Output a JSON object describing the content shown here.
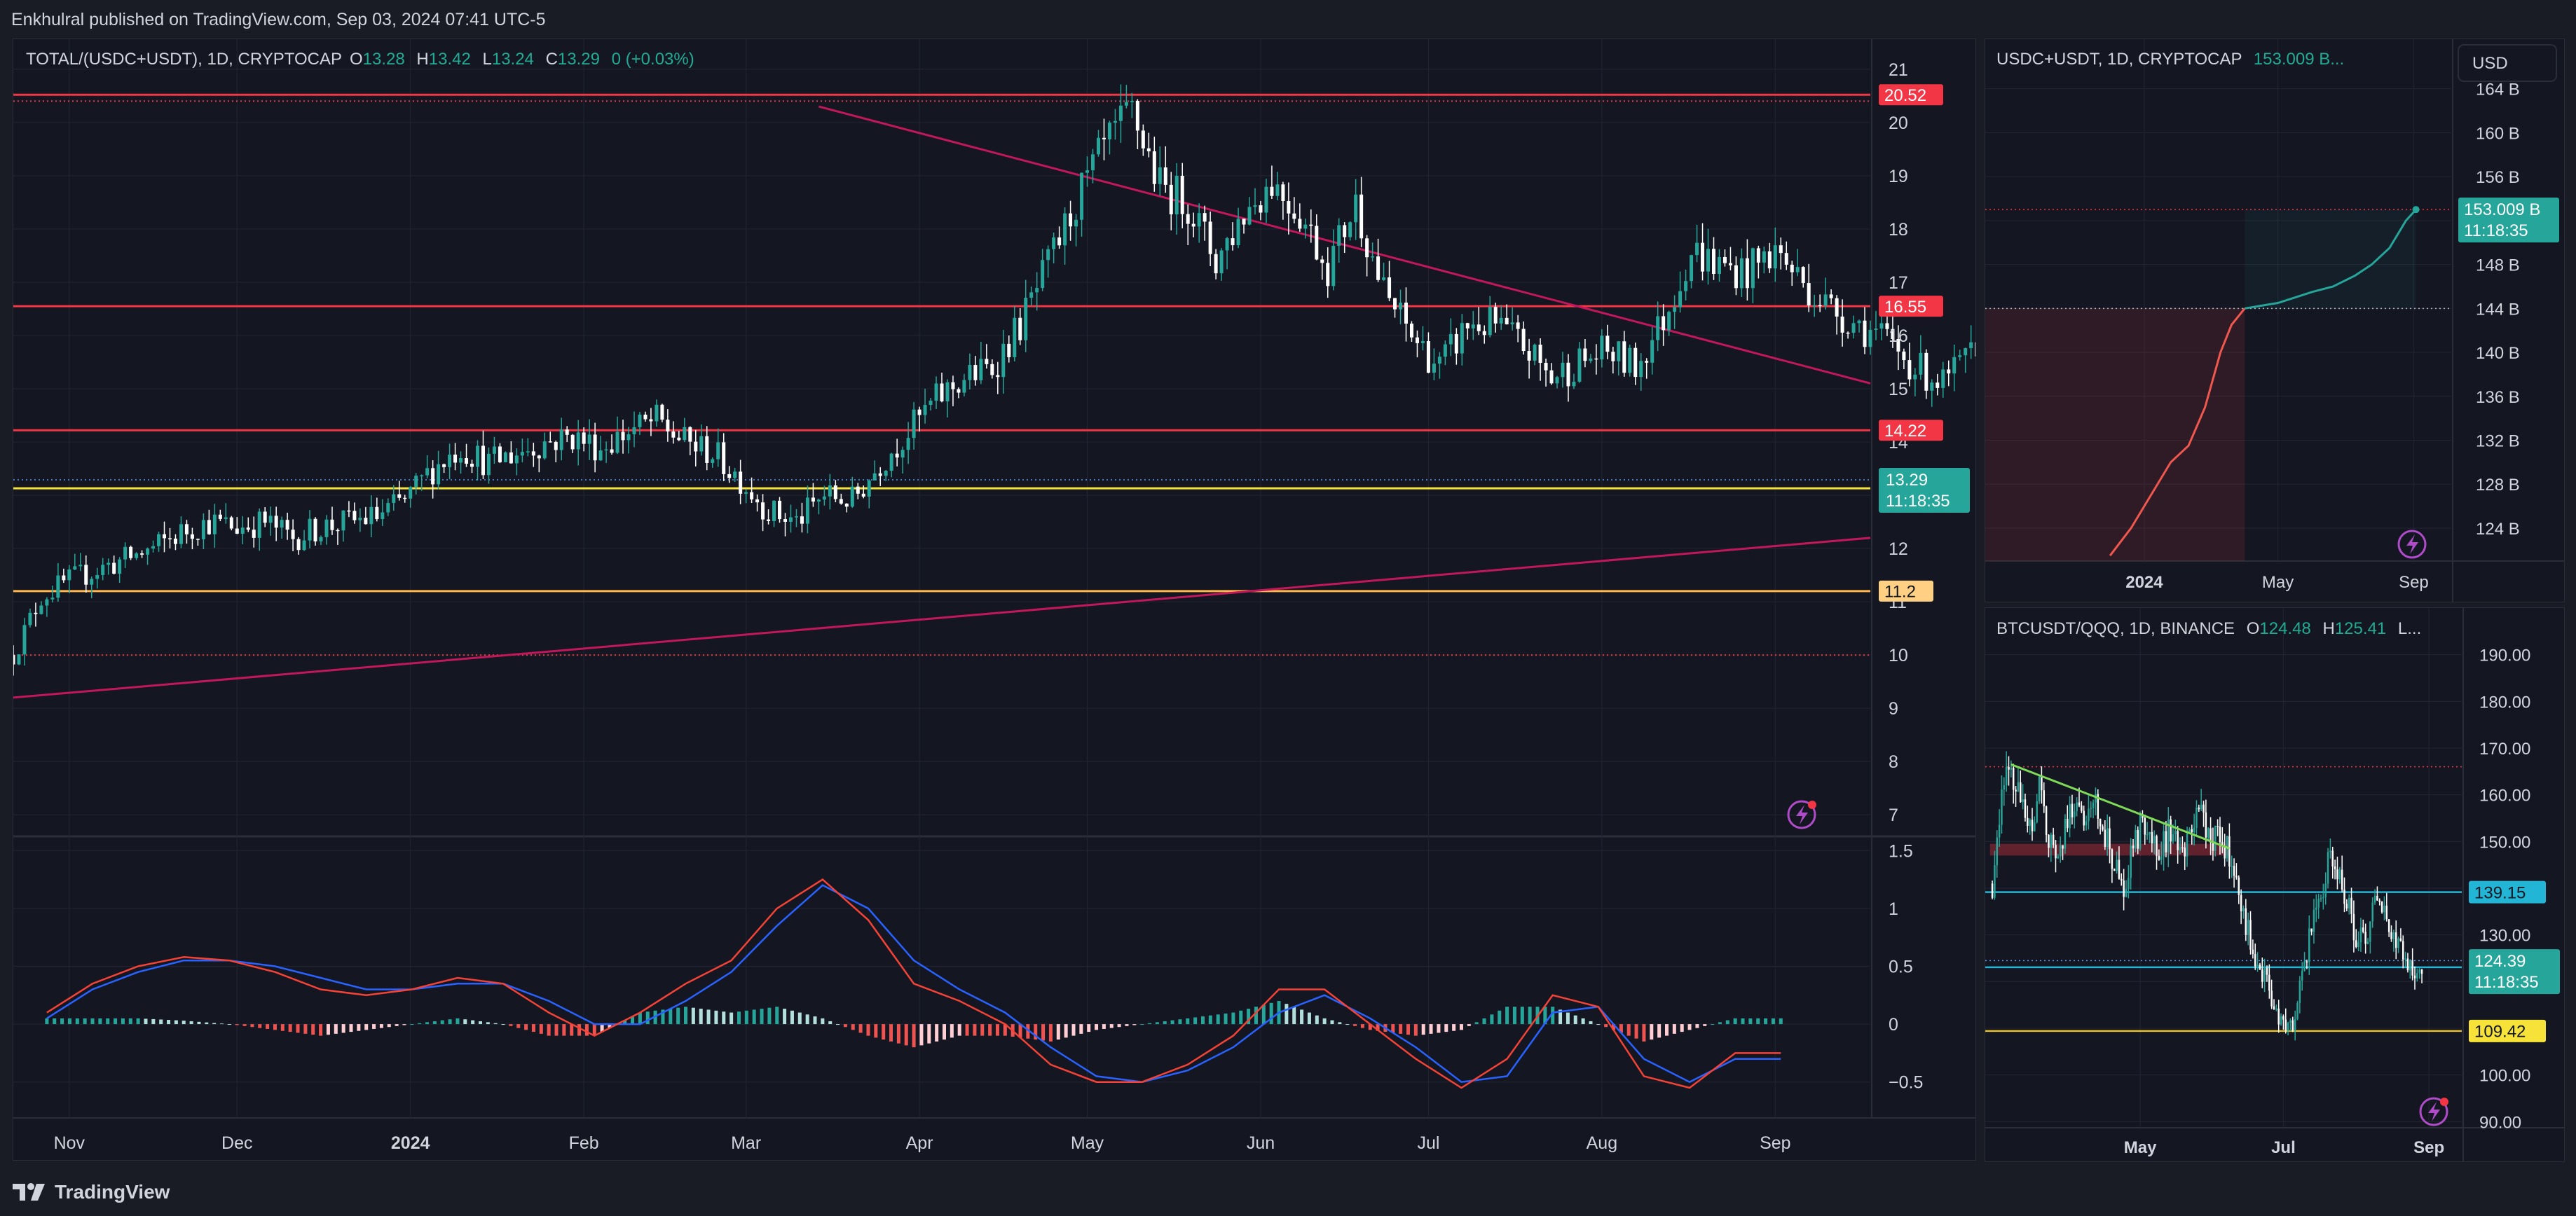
{
  "header": {
    "published": "Enkhulral published on TradingView.com, Sep 03, 2024 07:41 UTC-5"
  },
  "footer": {
    "brand": "TradingView"
  },
  "colors": {
    "bg": "#141722",
    "grid": "#222633",
    "up": "#26a69a",
    "down": "#ffffff",
    "level_red": "#f23645",
    "level_yellow": "#f7e23a",
    "level_orange": "#ffb74d",
    "trend": "#c2185b",
    "macd": "#2962ff",
    "signal": "#f44336"
  },
  "chart_data": [
    {
      "type": "candlestick",
      "title": "TOTAL/(USDC+USDT), 1D, CRYPTOCAP",
      "ohlc_labels": {
        "o": "O",
        "o_val": "13.28",
        "h": "H",
        "h_val": "13.42",
        "l": "L",
        "l_val": "13.24",
        "c": "C",
        "c_val": "13.29",
        "change": "0 (+0.03%)"
      },
      "ylim": [
        6.7,
        21.3
      ],
      "y_ticks": [
        7,
        8,
        9,
        10,
        11,
        12,
        13,
        14,
        15,
        16,
        17,
        18,
        19,
        20,
        21
      ],
      "x_ticks": [
        "Nov",
        "Dec",
        "2024",
        "Feb",
        "Mar",
        "Apr",
        "May",
        "Jun",
        "Jul",
        "Aug",
        "Sep"
      ],
      "x_range": [
        "2023-10-22",
        "2024-09-18"
      ],
      "x_tick_dates": [
        "2023-11-01",
        "2023-12-01",
        "2024-01-01",
        "2024-02-01",
        "2024-03-01",
        "2024-04-01",
        "2024-05-01",
        "2024-06-01",
        "2024-07-01",
        "2024-08-01",
        "2024-09-01"
      ],
      "path_start": "2023-10-22",
      "path_step_days": 5,
      "closes": [
        10.0,
        11.1,
        11.4,
        11.6,
        11.8,
        12.0,
        12.3,
        12.5,
        12.4,
        12.5,
        12.2,
        12.4,
        12.5,
        12.6,
        12.9,
        13.5,
        13.9,
        13.6,
        13.8,
        14.0,
        14.1,
        13.9,
        14.2,
        14.4,
        14.0,
        13.8,
        13.3,
        12.7,
        12.5,
        13.0,
        12.9,
        13.6,
        14.2,
        14.8,
        15.2,
        15.4,
        16.2,
        17.3,
        18.5,
        19.5,
        20.2,
        18.8,
        18.5,
        17.4,
        18.3,
        18.9,
        18.3,
        17.3,
        18.5,
        16.8,
        16.0,
        15.4,
        16.2,
        16.2,
        15.8,
        15.2,
        15.5,
        15.7,
        15.4,
        16.3,
        17.6,
        17.3,
        17.2,
        17.6,
        17.0,
        16.5,
        16.2,
        15.9,
        15.4,
        15.1,
        15.6,
        14.2,
        14.0,
        14.9,
        16.0,
        16.2,
        15.4,
        14.2,
        12.4,
        13.6,
        13.6,
        13.2,
        13.7,
        14.4,
        13.5,
        13.1,
        13.3
      ],
      "levels": [
        {
          "value": 20.52,
          "label": "20.52",
          "color": "#f23645",
          "bg": "#f23645",
          "fg": "#ffffff"
        },
        {
          "value": 16.55,
          "label": "16.55",
          "color": "#f23645",
          "bg": "#f23645",
          "fg": "#ffffff"
        },
        {
          "value": 14.22,
          "label": "14.22",
          "color": "#f23645",
          "bg": "#f23645",
          "fg": "#ffffff"
        },
        {
          "value": 13.13,
          "label": "13.13",
          "color": "#f7e23a",
          "bg": "#f7e23a",
          "fg": "#131722"
        },
        {
          "value": 11.2,
          "label": "11.2",
          "color": "#ffb74d",
          "bg": "#ffd083",
          "fg": "#131722"
        }
      ],
      "dotted_levels": [
        20.4,
        10.0
      ],
      "price_tag": {
        "value": 13.29,
        "label": "13.29",
        "timer": "11:18:35"
      },
      "trendlines": [
        {
          "from": [
            "2024-03-14",
            20.3
          ],
          "to": [
            "2024-09-18",
            15.1
          ]
        },
        {
          "from": [
            "2023-10-22",
            9.2
          ],
          "to": [
            "2024-09-18",
            12.2
          ]
        }
      ],
      "macd": {
        "ylim": [
          -0.75,
          1.55
        ],
        "y_ticks": [
          -0.5,
          0,
          0.5,
          1,
          1.5
        ],
        "y_tick_labels": [
          "−0.5",
          "0",
          "0.5",
          "1",
          "1.5"
        ],
        "macd": [
          0.1,
          0.35,
          0.5,
          0.58,
          0.55,
          0.45,
          0.3,
          0.25,
          0.3,
          0.4,
          0.35,
          0.1,
          -0.1,
          0.1,
          0.35,
          0.55,
          1.0,
          1.25,
          0.9,
          0.35,
          0.2,
          0.0,
          -0.35,
          -0.5,
          -0.5,
          -0.35,
          -0.1,
          0.3,
          0.3,
          0.0,
          -0.3,
          -0.55,
          -0.3,
          0.25,
          0.15,
          -0.45,
          -0.55,
          -0.25,
          -0.25
        ],
        "signal": [
          0.05,
          0.3,
          0.45,
          0.55,
          0.55,
          0.5,
          0.4,
          0.3,
          0.3,
          0.35,
          0.35,
          0.2,
          0.0,
          0.0,
          0.2,
          0.45,
          0.85,
          1.2,
          1.0,
          0.55,
          0.3,
          0.1,
          -0.2,
          -0.45,
          -0.5,
          -0.4,
          -0.2,
          0.1,
          0.25,
          0.05,
          -0.2,
          -0.5,
          -0.45,
          0.1,
          0.15,
          -0.3,
          -0.5,
          -0.3,
          -0.3
        ],
        "histogram": [
          0.05,
          0.05,
          0.05,
          0.03,
          0.0,
          -0.05,
          -0.1,
          -0.05,
          0.0,
          0.05,
          0.0,
          -0.1,
          -0.1,
          0.1,
          0.15,
          0.1,
          0.15,
          0.05,
          -0.1,
          -0.2,
          -0.1,
          -0.1,
          -0.15,
          -0.05,
          0.0,
          0.05,
          0.1,
          0.2,
          0.05,
          -0.05,
          -0.1,
          -0.05,
          0.15,
          0.15,
          0.0,
          -0.15,
          -0.05,
          0.05,
          0.05
        ]
      }
    },
    {
      "type": "line",
      "title": "USDC+USDT, 1D, CRYPTOCAP",
      "value_label": "153.009 B...",
      "currency_button": "USD",
      "ylim": [
        121,
        165
      ],
      "y_ticks": [
        124,
        128,
        132,
        136,
        140,
        144,
        148,
        152,
        156,
        160,
        164
      ],
      "y_tick_labels": [
        "124 B",
        "128 B",
        "132 B",
        "136 B",
        "140 B",
        "144 B",
        "148 B",
        "152 B",
        "156 B",
        "160 B",
        "164 B"
      ],
      "x_ticks": [
        "2024",
        "May",
        "Sep"
      ],
      "x_range": [
        "2023-08-10",
        "2024-10-05"
      ],
      "x_tick_dates": [
        "2024-01-01",
        "2024-05-01",
        "2024-09-01"
      ],
      "dates": [
        "2023-12-01",
        "2023-12-20",
        "2024-01-10",
        "2024-01-25",
        "2024-02-10",
        "2024-02-25",
        "2024-03-10",
        "2024-03-20",
        "2024-04-01",
        "2024-05-01",
        "2024-06-01",
        "2024-06-20",
        "2024-07-10",
        "2024-07-25",
        "2024-08-10",
        "2024-08-25",
        "2024-09-03"
      ],
      "values": [
        121.5,
        124.0,
        127.5,
        130.0,
        131.5,
        135.0,
        140.0,
        142.5,
        144.0,
        144.5,
        145.5,
        146.0,
        147.0,
        148.0,
        149.5,
        152.0,
        153.0
      ],
      "levels": [
        153.0,
        144.0
      ],
      "price_tag": {
        "label": "153.009 B",
        "timer": "11:18:35"
      }
    },
    {
      "type": "candlestick",
      "title": "BTCUSDT/QQQ, 1D, BINANCE",
      "ohlc_labels": {
        "o": "O",
        "o_val": "124.48",
        "h": "H",
        "h_val": "125.41",
        "more": "L..."
      },
      "ylim": [
        89,
        194
      ],
      "y_ticks": [
        90,
        100,
        110,
        120,
        130,
        140,
        150,
        160,
        170,
        180,
        190
      ],
      "y_tick_labels": [
        "90.00",
        "100.00",
        "110.00",
        "120.00",
        "130.00",
        "140.00",
        "150.00",
        "160.00",
        "170.00",
        "180.00",
        "190.00"
      ],
      "x_ticks": [
        "May",
        "Jul",
        "Sep"
      ],
      "x_range": [
        "2024-02-25",
        "2024-09-15"
      ],
      "x_tick_dates": [
        "2024-05-01",
        "2024-07-01",
        "2024-09-01"
      ],
      "path_start": "2024-02-28",
      "path_step_days": 4,
      "closes": [
        141,
        160,
        166,
        158,
        152,
        161,
        150,
        146,
        155,
        160,
        153,
        158,
        152,
        144,
        140,
        148,
        155,
        150,
        149,
        153,
        146,
        150,
        156,
        152,
        150,
        148,
        143,
        132,
        126,
        121,
        115,
        110,
        112,
        120,
        133,
        139,
        147,
        143,
        135,
        128,
        131,
        140,
        134,
        129,
        125,
        122,
        124
      ],
      "levels": [
        {
          "value": 139.15,
          "label": "139.15",
          "color": "#22b5d6",
          "bg": "#22b5d6",
          "fg": "#131722"
        },
        {
          "value": 123.07,
          "label": "123.07",
          "color": "#22b5d6",
          "bg": "#22b5d6",
          "fg": "#131722"
        },
        {
          "value": 109.42,
          "label": "109.42",
          "color": "#e6c025",
          "bg": "#f7e23a",
          "fg": "#131722"
        }
      ],
      "dotted_levels": [
        166.0,
        124.5
      ],
      "zone": {
        "from": "2024-02-27",
        "to": "2024-06-08",
        "top": 149.5,
        "bottom": 147.0
      },
      "trendline": {
        "from": [
          "2024-03-07",
          166.5
        ],
        "to": [
          "2024-06-08",
          148.5
        ]
      },
      "price_tag": {
        "value": 124.39,
        "label": "124.39",
        "timer": "11:18:35"
      }
    }
  ]
}
